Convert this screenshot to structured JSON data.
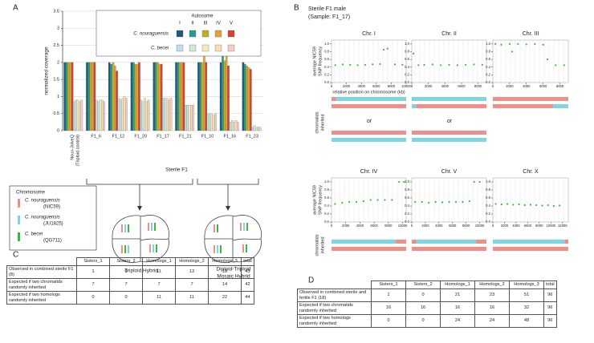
{
  "panel_letters": [
    "A",
    "B",
    "C",
    "D"
  ],
  "chart_data": [
    {
      "type": "bar",
      "ylabel": "normalized coverage",
      "categories": [
        "Nouv-JolveQ",
        "F1_6",
        "F1_12",
        "F1_20",
        "F1_17",
        "F1_21",
        "F1_10",
        "F1_16",
        "F1_23"
      ],
      "category_note": "(Triploid control)",
      "group_label": "Sterile F1",
      "legend_title": "Autosome",
      "ylim": [
        0,
        3.5
      ],
      "yticks": [
        0,
        0.5,
        1,
        1.5,
        2,
        2.5,
        3,
        3.5
      ],
      "grid": true,
      "series_groups": [
        {
          "name": "C. nouraguensis",
          "series": [
            {
              "name": "I",
              "color": "#1d5a7e",
              "values": [
                2.0,
                2.0,
                2.0,
                2.0,
                2.0,
                2.0,
                2.0,
                2.0,
                2.0
              ]
            },
            {
              "name": "II",
              "color": "#2a9a8c",
              "values": [
                2.0,
                2.0,
                1.95,
                2.0,
                2.0,
                2.0,
                2.0,
                2.2,
                1.95
              ]
            },
            {
              "name": "III",
              "color": "#b8b224",
              "values": [
                2.0,
                2.0,
                2.0,
                1.95,
                2.0,
                2.0,
                2.0,
                2.05,
                1.9
              ]
            },
            {
              "name": "IV",
              "color": "#e2a23a",
              "values": [
                2.0,
                2.0,
                1.9,
                1.95,
                1.95,
                2.0,
                3.0,
                2.2,
                1.85
              ]
            },
            {
              "name": "V",
              "color": "#d8432c",
              "values": [
                2.0,
                2.0,
                1.75,
                2.0,
                1.95,
                2.0,
                2.0,
                1.9,
                1.8
              ]
            }
          ]
        },
        {
          "name": "C. becei",
          "series": [
            {
              "color": "#c4dcea",
              "values": [
                0.85,
                0.9,
                0.95,
                0.9,
                0.95,
                0.75,
                0.5,
                0.25,
                0.1
              ]
            },
            {
              "color": "#cfe7df",
              "values": [
                0.9,
                0.85,
                0.9,
                0.85,
                0.95,
                0.75,
                0.5,
                0.3,
                0.15
              ]
            },
            {
              "color": "#efebbf",
              "values": [
                0.9,
                0.9,
                0.95,
                0.95,
                0.95,
                0.75,
                0.5,
                0.25,
                0.1
              ]
            },
            {
              "color": "#f6dfb6",
              "values": [
                0.85,
                0.9,
                1.0,
                0.85,
                0.9,
                0.75,
                0.45,
                0.3,
                0.1
              ]
            },
            {
              "color": "#f3ccc4",
              "values": [
                0.9,
                0.85,
                0.95,
                0.9,
                0.95,
                0.75,
                0.5,
                0.25,
                0.1
              ]
            }
          ]
        }
      ]
    },
    {
      "type": "scatter",
      "title": "Chr. I",
      "ylabel": [
        "average NIC59",
        "SNP frequency"
      ],
      "xlabel": "relative position on chromosome (kb)",
      "color": "#3cb83c",
      "x": [
        500,
        1500,
        2500,
        3500,
        4500,
        5500,
        6500,
        7000,
        7500,
        8500,
        9500
      ],
      "y": [
        0.45,
        0.47,
        0.46,
        0.45,
        0.46,
        0.47,
        0.48,
        0.85,
        0.88,
        0.47,
        0.46
      ],
      "xlim": [
        0,
        10000
      ],
      "xticks": [
        0,
        2000,
        4000,
        6000,
        8000,
        10000
      ],
      "ylim": [
        0,
        1.1
      ],
      "yticks": [
        {
          "value": 0,
          "label": "0.0"
        },
        0.2,
        0.4,
        0.6,
        0.8,
        {
          "value": 1,
          "label": "1.0"
        }
      ]
    },
    {
      "type": "scatter",
      "title": "Chr. II",
      "color": "#3cb83c",
      "x": [
        200,
        800,
        1500,
        2500,
        3500,
        4500,
        5500,
        6500,
        7500,
        8500
      ],
      "y": [
        0.75,
        0.45,
        0.46,
        0.47,
        0.45,
        0.46,
        0.45,
        0.46,
        0.47,
        0.46
      ],
      "xlim": [
        0,
        9000
      ],
      "xticks": [
        0,
        2000,
        4000,
        6000,
        8000
      ],
      "ylim": [
        0,
        1.1
      ],
      "yticks": [
        {
          "value": 0,
          "label": "0.0"
        },
        0.2,
        0.4,
        0.6,
        0.8,
        {
          "value": 1,
          "label": "1.0"
        }
      ]
    },
    {
      "type": "scatter",
      "title": "Chr. III",
      "color": "#3cb83c",
      "x": [
        300,
        1000,
        2000,
        2300,
        3000,
        4000,
        5000,
        6000,
        6500,
        7500,
        8500
      ],
      "y": [
        1.0,
        0.98,
        1.0,
        0.8,
        1.0,
        0.99,
        1.0,
        0.98,
        0.6,
        0.45,
        0.45
      ],
      "xlim": [
        0,
        9000
      ],
      "xticks": [
        0,
        2000,
        4000,
        6000,
        8000
      ],
      "ylim": [
        0,
        1.1
      ],
      "yticks": [
        {
          "value": 0,
          "label": "0.0"
        },
        0.2,
        0.4,
        0.6,
        0.8,
        {
          "value": 1,
          "label": "1.0"
        }
      ]
    },
    {
      "type": "scatter",
      "title": "Chr. IV",
      "ylabel": [
        "average NIC59",
        "SNP frequency"
      ],
      "color": "#3cb83c",
      "x": [
        500,
        1500,
        2500,
        3500,
        4500,
        5500,
        6500,
        7500,
        8500,
        9500,
        10200
      ],
      "y": [
        0.45,
        0.48,
        0.5,
        0.5,
        0.52,
        0.55,
        0.55,
        0.55,
        0.55,
        1.0,
        1.0
      ],
      "xlim": [
        0,
        10500
      ],
      "xticks": [
        0,
        2000,
        4000,
        6000,
        8000,
        10000
      ],
      "ylim": [
        0,
        1.1
      ],
      "yticks": [
        {
          "value": 0,
          "label": "0.0"
        },
        0.2,
        0.4,
        0.6,
        0.8,
        {
          "value": 1,
          "label": "1.0"
        }
      ]
    },
    {
      "type": "scatter",
      "title": "Chr. V",
      "color": "#3cb83c",
      "x": [
        500,
        1500,
        2500,
        3500,
        4500,
        5500,
        6500,
        7500,
        8500,
        9200,
        10000
      ],
      "y": [
        0.5,
        0.5,
        0.48,
        0.5,
        0.49,
        0.5,
        0.5,
        0.5,
        0.52,
        1.0,
        1.0
      ],
      "xlim": [
        0,
        11000
      ],
      "xticks": [
        0,
        2000,
        4000,
        6000,
        8000,
        10000
      ],
      "ylim": [
        0,
        1.1
      ],
      "yticks": [
        {
          "value": 0,
          "label": "0.0"
        },
        0.2,
        0.4,
        0.6,
        0.8,
        {
          "value": 1,
          "label": "1.0"
        }
      ]
    },
    {
      "type": "scatter",
      "title": "Chr. X",
      "color": "#3cb83c",
      "x": [
        500,
        1500,
        2500,
        3500,
        4500,
        5500,
        6500,
        7500,
        8500,
        9500,
        10500,
        11500
      ],
      "y": [
        0.45,
        0.44,
        0.45,
        0.43,
        0.44,
        0.42,
        0.43,
        0.42,
        0.41,
        0.42,
        0.4,
        0.41
      ],
      "xlim": [
        0,
        13000
      ],
      "xticks": [
        0,
        2000,
        4000,
        6000,
        8000,
        10000,
        12000
      ],
      "ylim": [
        0,
        1.1
      ],
      "yticks": [
        {
          "value": 0,
          "label": "0.0"
        },
        0.2,
        0.4,
        0.6,
        0.8,
        {
          "value": 1,
          "label": "1.0"
        }
      ]
    }
  ],
  "panel_b": {
    "title": [
      "Sterile F1 male",
      "(Sample: F1_17)"
    ],
    "chromatid_labels": [
      [
        "chromatids",
        "inherited"
      ],
      [
        "chromatids",
        "inherited"
      ]
    ],
    "or_labels": [
      "or",
      "or"
    ]
  },
  "panel_a_lower": {
    "chromosome_legend": {
      "title": "Chromosome",
      "items": [
        {
          "species": "C. nouraguensis",
          "strain": "(NIC59)",
          "color": "#ef8f8a"
        },
        {
          "species": "C. nouraguensis",
          "strain": "(JU1825)",
          "color": "#7fd6e0"
        },
        {
          "species": "C. becei",
          "strain": "(QG711)",
          "color": "#3cb83c"
        }
      ]
    },
    "outcomes": [
      [
        "Triploid Hybrid"
      ],
      [
        "Diploid-Triploid",
        "Mosaic Hybrid"
      ]
    ]
  },
  "table_c": {
    "header": [
      "Sisters_1",
      "Sisters_2",
      "Homologs_1",
      "Homologs_2",
      "Homologs_3",
      "total"
    ],
    "rows": [
      {
        "label": "Observed in combined sterile F1 (8)",
        "cells": [
          "1",
          "0",
          "11",
          "13",
          "18",
          "43"
        ]
      },
      {
        "label": "Expected if two chromatids randomly inherited",
        "cells": [
          "7",
          "7",
          "7",
          "7",
          "14",
          "42"
        ]
      },
      {
        "label": "Expected if two homologs randomly inherited",
        "cells": [
          "0",
          "0",
          "11",
          "11",
          "22",
          "44"
        ]
      }
    ]
  },
  "table_d": {
    "header": [
      "Sisters_1",
      "Sisters_2",
      "Homologs_1",
      "Homologs_2",
      "Homologs_3",
      "total"
    ],
    "rows": [
      {
        "label": "Observed in combined sterile and fertile F1 (18)",
        "cells": [
          "1",
          "0",
          "21",
          "23",
          "51",
          "96"
        ]
      },
      {
        "label": "Expected if two chromatids randomly inherited",
        "cells": [
          "16",
          "16",
          "16",
          "16",
          "32",
          "96"
        ]
      },
      {
        "label": "Expected if two homologs randomly inherited",
        "cells": [
          "0",
          "0",
          "24",
          "24",
          "48",
          "96"
        ]
      }
    ]
  }
}
